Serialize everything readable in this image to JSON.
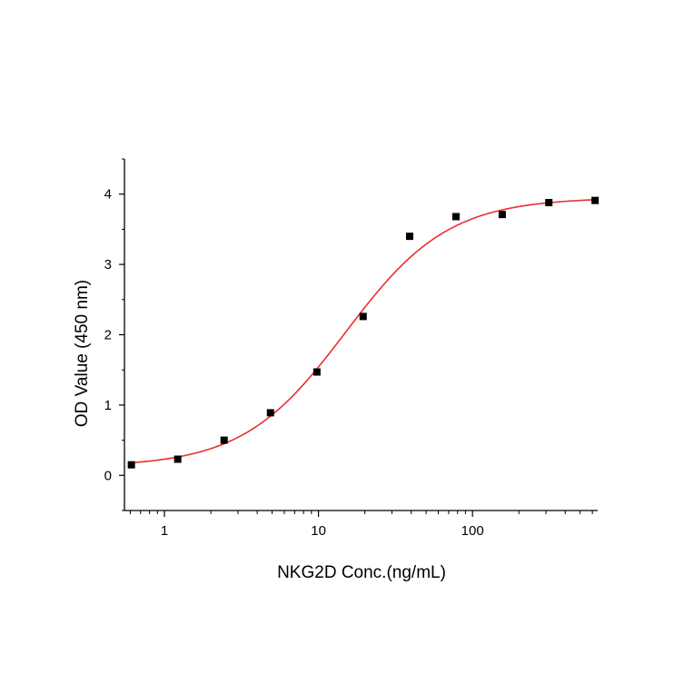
{
  "chart_data": {
    "type": "scatter",
    "title": "",
    "xlabel": "NKG2D Conc.(ng/mL)",
    "ylabel": "OD Value (450 nm)",
    "x_scale": "log",
    "xlim": [
      0.55,
      650
    ],
    "ylim": [
      -0.5,
      4.5
    ],
    "x_ticks": [
      1,
      10,
      100
    ],
    "x_tick_labels": [
      "1",
      "10",
      "100"
    ],
    "y_ticks": [
      0,
      1,
      2,
      3,
      4
    ],
    "y_tick_labels": [
      "0",
      "1",
      "2",
      "3",
      "4"
    ],
    "grid": false,
    "legend": "none",
    "series": [
      {
        "marker": "square",
        "color": "#000000",
        "x": [
          0.61,
          1.22,
          2.44,
          4.88,
          9.77,
          19.5,
          39.1,
          78.1,
          156,
          313,
          625
        ],
        "y": [
          0.15,
          0.23,
          0.5,
          0.89,
          1.47,
          2.26,
          3.4,
          3.68,
          3.71,
          3.88,
          3.91
        ]
      }
    ],
    "fit_curve": {
      "color": "#e8302f",
      "model": "4PL",
      "bottom": 0.12,
      "top": 3.95,
      "ec50": 15,
      "hill": 1.3
    }
  }
}
